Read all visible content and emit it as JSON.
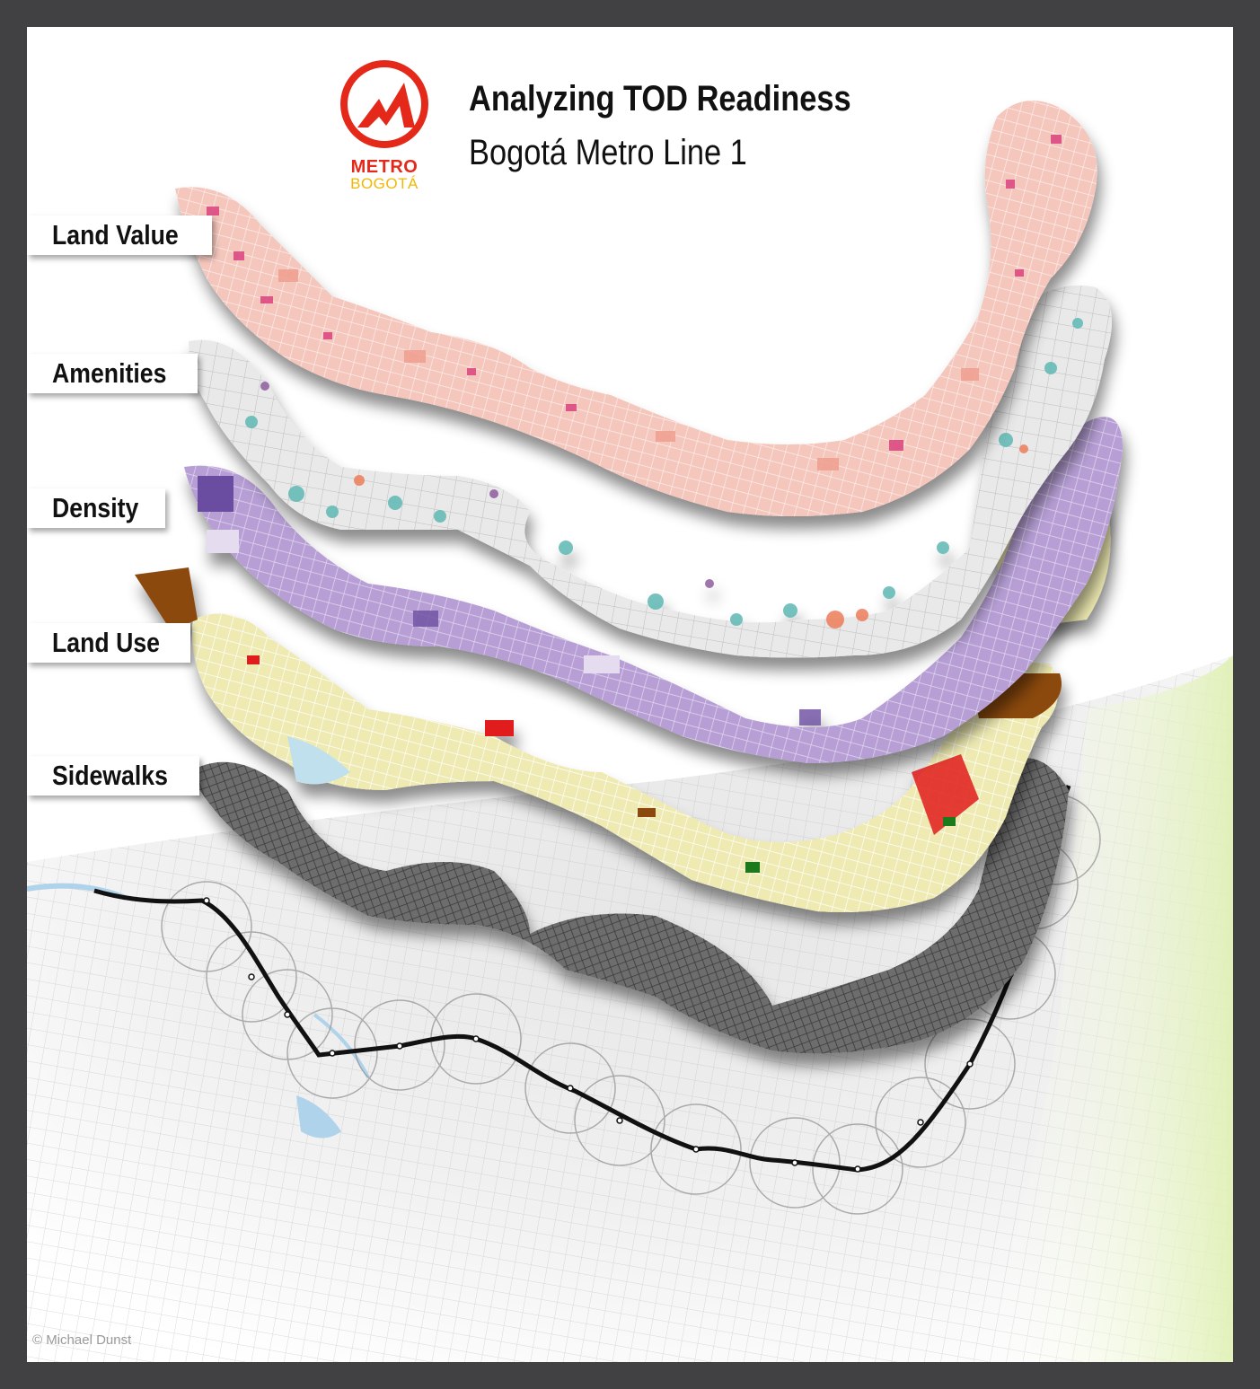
{
  "title": "Analyzing TOD Readiness",
  "subtitle": "Bogotá Metro Line 1",
  "logo": {
    "line1": "METRO",
    "line2": "BOGOTÁ",
    "icon": "metro-mountain-icon",
    "color_red": "#e4291a",
    "color_yellow": "#f2b705"
  },
  "layers": [
    {
      "label": "Land Value",
      "colors": [
        "#f7d6cf",
        "#ef9f8f",
        "#d9447e",
        "#a7207a"
      ]
    },
    {
      "label": "Amenities",
      "colors": [
        "#e9e9e9",
        "#5fb8b3",
        "#ee7d5a",
        "#8e5d9f"
      ]
    },
    {
      "label": "Density",
      "colors": [
        "#e6dcf0",
        "#c2acdc",
        "#9a7ec4",
        "#6b4ea0"
      ]
    },
    {
      "label": "Land Use",
      "colors": [
        "#eeeab2",
        "#e11b1b",
        "#1d7a1d",
        "#8b4a0f",
        "#bfe0ec"
      ]
    },
    {
      "label": "Sidewalks",
      "colors": [
        "#555555",
        "#777777",
        "#999999"
      ]
    }
  ],
  "credit": "© Michael Dunst"
}
